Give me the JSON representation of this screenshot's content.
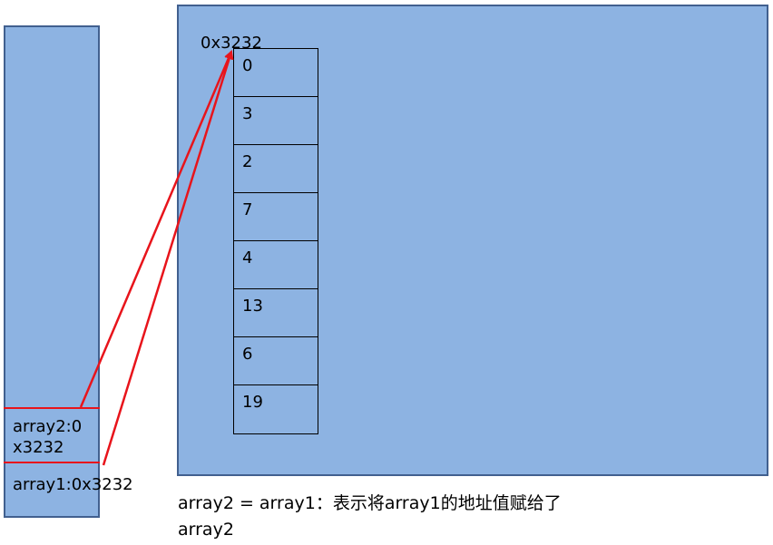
{
  "stack": {
    "array2_label": "array2:0x3232",
    "array1_label": "array1:0x3232"
  },
  "heap": {
    "address_label": "0x3232",
    "cells": [
      "0",
      "3",
      "2",
      "7",
      "4",
      "13",
      "6",
      "19"
    ]
  },
  "caption": "array2 = array1：表示将array1的地址值赋给了array2",
  "colors": {
    "fill": "#8db3e2",
    "border": "#41608f",
    "arrow": "#e8141b"
  }
}
